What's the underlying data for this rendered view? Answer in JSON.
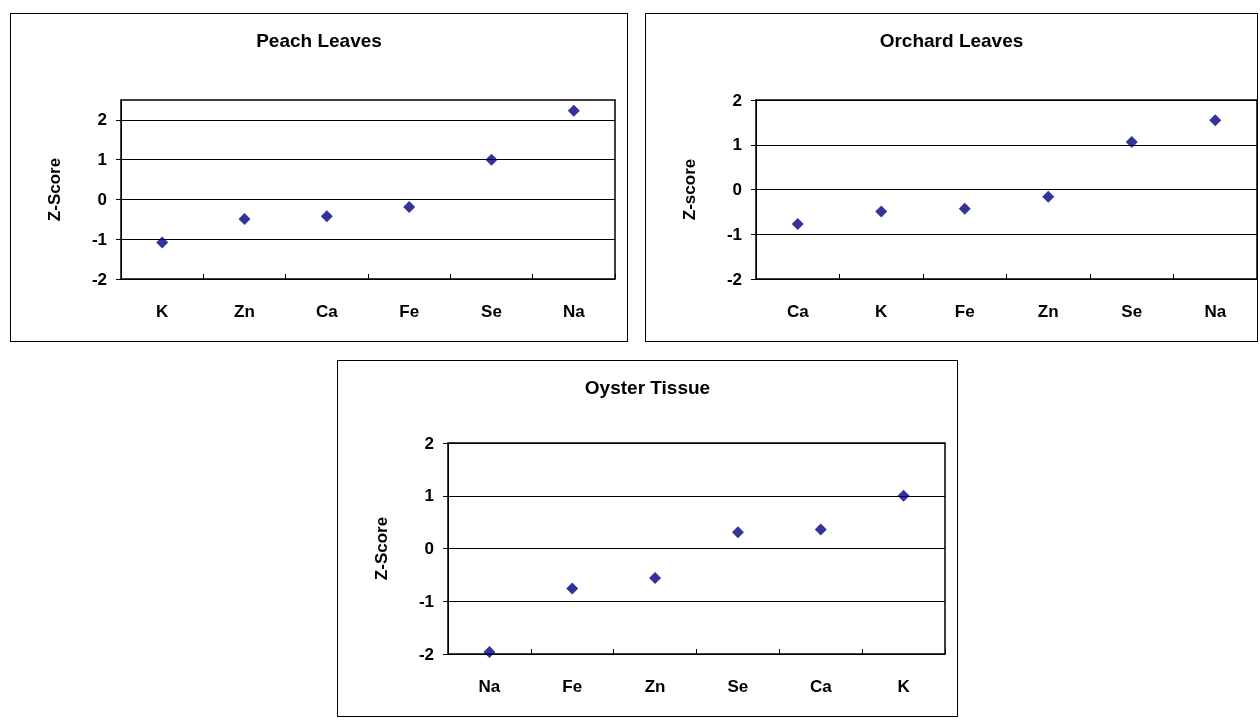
{
  "chart_data": [
    {
      "type": "scatter",
      "title": "Peach Leaves",
      "ylabel": "Z-Score",
      "categories": [
        "K",
        "Zn",
        "Ca",
        "Fe",
        "Se",
        "Na"
      ],
      "values": [
        -1.08,
        -0.49,
        -0.42,
        -0.19,
        1.0,
        2.23
      ],
      "color": "#000080",
      "ylim": [
        -2,
        2.5
      ],
      "yticks": [
        -2,
        -1,
        0,
        1,
        2
      ],
      "grid": "y",
      "marker": "diamond"
    },
    {
      "type": "scatter",
      "title": "Orchard Leaves",
      "ylabel": "Z-score",
      "categories": [
        "Ca",
        "K",
        "Fe",
        "Zn",
        "Se",
        "Na"
      ],
      "values": [
        -0.77,
        -0.49,
        -0.43,
        -0.16,
        1.06,
        1.55
      ],
      "color": "#000080",
      "ylim": [
        -2,
        2
      ],
      "yticks": [
        -2,
        -1,
        0,
        1,
        2
      ],
      "grid": "y",
      "marker": "diamond"
    },
    {
      "type": "scatter",
      "title": "Oyster Tissue",
      "ylabel": "Z-Score",
      "categories": [
        "Na",
        "Fe",
        "Zn",
        "Se",
        "Ca",
        "K"
      ],
      "values": [
        -1.96,
        -0.76,
        -0.56,
        0.31,
        0.36,
        1.0
      ],
      "color": "#000080",
      "ylim": [
        -2,
        2
      ],
      "yticks": [
        -2,
        -1,
        0,
        1,
        2
      ],
      "grid": "y",
      "marker": "diamond"
    }
  ]
}
